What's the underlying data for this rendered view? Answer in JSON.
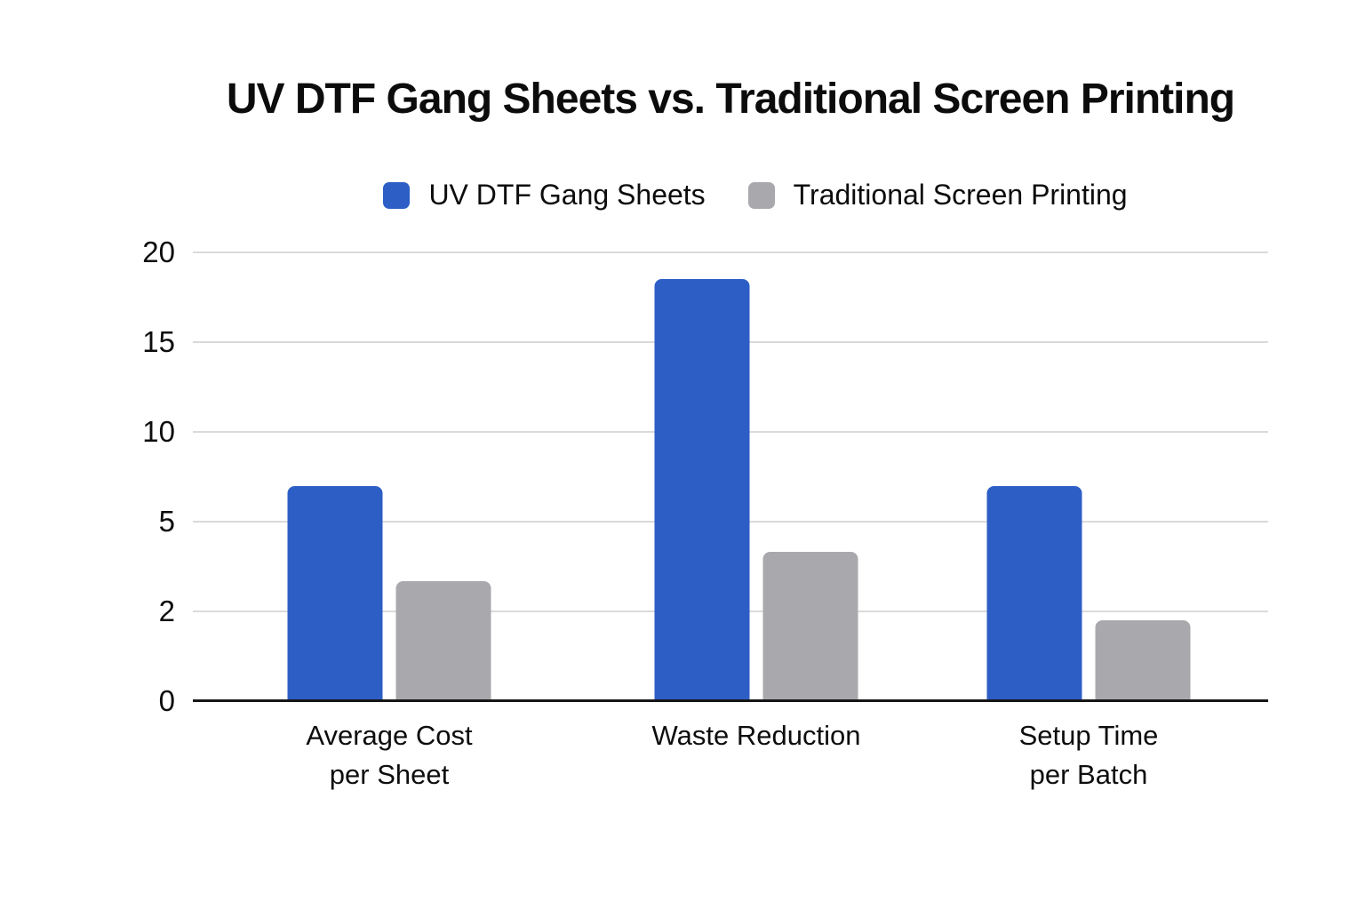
{
  "chart_data": {
    "type": "bar",
    "title": "UV DTF Gang Sheets vs. Traditional Screen Printing",
    "categories": [
      "Average Cost\nper Sheet",
      "Waste Reduction",
      "Setup Time\nper Batch"
    ],
    "series": [
      {
        "name": "UV DTF Gang Sheets",
        "color": "#2D5EC6",
        "values": [
          7,
          18.5,
          7
        ]
      },
      {
        "name": "Traditional Screen Printing",
        "color": "#A9A9AD",
        "values": [
          3,
          4,
          1.8
        ]
      }
    ],
    "y_ticks": [
      0,
      2,
      5,
      10,
      15,
      20
    ],
    "y_axis_style": "ticks evenly spaced (non-linear value scale)",
    "xlabel": "",
    "ylabel": "",
    "grid": true,
    "legend_position": "top",
    "colors": {
      "series_blue": "#2D5EC6",
      "series_gray": "#A9A9AD",
      "gridline": "#DADADA",
      "axis_line": "#161616",
      "text": "#0C0C0C",
      "background": "#FFFFFF"
    }
  }
}
